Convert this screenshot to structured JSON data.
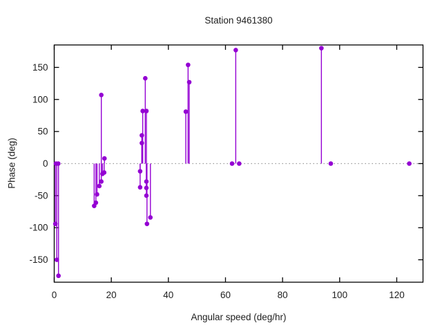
{
  "header": {
    "title": "Station 9461380"
  },
  "chart_data": {
    "type": "scatter",
    "style": "impulses-with-points (vertical stems from y=0, filled circle markers)",
    "title": "Station 9461380",
    "xlabel": "Angular speed (deg/hr)",
    "ylabel": "Phase (deg)",
    "xlim": [
      0,
      129.2
    ],
    "ylim": [
      -185,
      185
    ],
    "x_ticks": [
      0,
      20,
      40,
      60,
      80,
      100,
      120
    ],
    "y_ticks": [
      -150,
      -100,
      -50,
      0,
      50,
      100,
      150
    ],
    "grid": "none except gray dotted horizontal line at y=0",
    "legend": "none",
    "series_color": "#9400d3",
    "points": [
      [
        0.6,
        0
      ],
      [
        1.4,
        0
      ],
      [
        0.4,
        -94
      ],
      [
        0.9,
        -150
      ],
      [
        1.5,
        -175
      ],
      [
        14.0,
        -66
      ],
      [
        14.6,
        -61
      ],
      [
        15.0,
        -48
      ],
      [
        15.8,
        -35
      ],
      [
        16.5,
        -28
      ],
      [
        16.9,
        -16
      ],
      [
        17.5,
        -14
      ],
      [
        16.5,
        107
      ],
      [
        17.6,
        8
      ],
      [
        30.1,
        -12
      ],
      [
        30.1,
        -37
      ],
      [
        32.3,
        -28
      ],
      [
        32.3,
        -38
      ],
      [
        32.3,
        -50
      ],
      [
        33.7,
        -84
      ],
      [
        32.5,
        -94
      ],
      [
        30.7,
        44
      ],
      [
        30.7,
        32
      ],
      [
        31.0,
        82
      ],
      [
        32.3,
        82
      ],
      [
        31.9,
        133
      ],
      [
        46.1,
        81
      ],
      [
        46.9,
        154
      ],
      [
        47.3,
        127
      ],
      [
        62.3,
        0
      ],
      [
        64.8,
        0
      ],
      [
        63.6,
        177
      ],
      [
        93.6,
        180
      ],
      [
        96.9,
        0
      ],
      [
        124.4,
        0
      ]
    ]
  },
  "colors": {
    "series": "#9400d3",
    "border": "#000000",
    "zero_line": "#9a9a9a",
    "text": "#202020",
    "background": "#ffffff"
  }
}
